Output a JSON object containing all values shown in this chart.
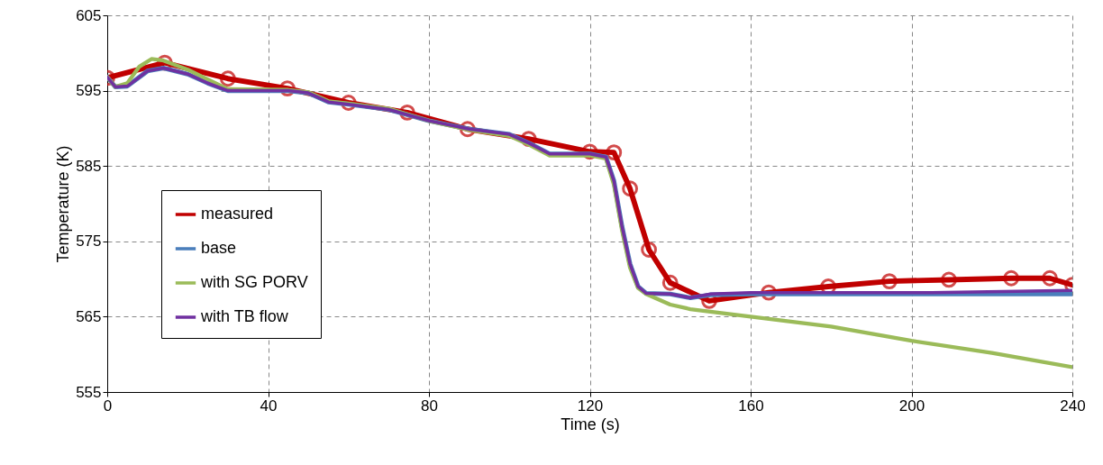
{
  "chart_data": {
    "type": "line",
    "xlabel": "Time (s)",
    "ylabel": "Temperature (K)",
    "xlim": [
      0,
      240
    ],
    "xticks": [
      0,
      40,
      80,
      120,
      160,
      200,
      240
    ],
    "ylim": [
      555,
      605
    ],
    "yticks": [
      555,
      565,
      575,
      585,
      595,
      605
    ],
    "grid": true,
    "legend": "bottom left",
    "line_style": "solid",
    "series": [
      {
        "name": "measured",
        "color": "#c00000",
        "marker": "circle",
        "x": [
          0,
          14.3,
          30,
          44.8,
          60,
          74.6,
          89.6,
          104.8,
          120,
          126,
          130,
          134.7,
          140,
          149.7,
          164.5,
          179.3,
          194.5,
          209.3,
          224.8,
          234.4,
          240
        ],
        "values": [
          596.7,
          598.7,
          596.6,
          595.3,
          593.4,
          592.1,
          589.9,
          588.6,
          586.9,
          586.8,
          582,
          573.9,
          569.5,
          567.1,
          568.2,
          569.0,
          569.7,
          569.9,
          570.1,
          570.1,
          569.2
        ]
      },
      {
        "name": "base",
        "color": "#4a7ebb",
        "x": [
          0,
          2,
          5,
          10,
          14,
          20,
          25,
          30,
          45,
          50,
          55,
          60,
          70,
          80,
          90,
          100,
          105,
          110,
          120,
          124,
          126,
          128,
          130,
          132,
          134,
          140,
          145,
          150,
          160,
          200,
          240
        ],
        "values": [
          596.8,
          595.5,
          595.6,
          597.6,
          598.0,
          597.2,
          596.0,
          595.0,
          595.0,
          594.7,
          593.5,
          593.2,
          592.5,
          591.0,
          589.9,
          589.2,
          588.0,
          586.6,
          586.6,
          586.2,
          583,
          577,
          572,
          569,
          568.1,
          568.0,
          567.5,
          567.9,
          568.0,
          568.0,
          568.0
        ]
      },
      {
        "name": "with SG PORV",
        "color": "#9bbb59",
        "x": [
          0,
          2,
          5,
          8,
          11,
          14,
          20,
          25,
          30,
          45,
          50,
          55,
          60,
          70,
          80,
          90,
          100,
          105,
          110,
          120,
          124,
          126,
          128,
          130,
          132,
          134,
          140,
          145,
          160,
          180,
          200,
          220,
          240
        ],
        "values": [
          596.8,
          595.5,
          596.0,
          598.2,
          599.2,
          599.0,
          597.8,
          596.5,
          595.2,
          595.1,
          594.8,
          593.6,
          593.3,
          592.6,
          591.0,
          589.8,
          589.0,
          587.8,
          586.4,
          586.4,
          586.0,
          582.5,
          576.5,
          571.5,
          568.8,
          568.0,
          566.6,
          566.0,
          565.0,
          563.7,
          561.8,
          560.2,
          558.3
        ]
      },
      {
        "name": "with TB flow",
        "color": "#7030a0",
        "x": [
          0,
          2,
          5,
          10,
          14,
          20,
          25,
          30,
          45,
          50,
          55,
          60,
          70,
          80,
          90,
          100,
          105,
          110,
          120,
          124,
          126,
          128,
          130,
          132,
          134,
          140,
          145,
          150,
          160,
          205,
          240
        ],
        "values": [
          596.8,
          595.5,
          595.6,
          597.6,
          598.0,
          597.2,
          596.0,
          595.0,
          595.0,
          594.7,
          593.5,
          593.2,
          592.5,
          591.0,
          589.9,
          589.2,
          588.0,
          586.6,
          586.6,
          586.2,
          583,
          577,
          572,
          569,
          568.1,
          568.0,
          567.5,
          568.0,
          568.2,
          568.2,
          568.5
        ]
      }
    ]
  }
}
